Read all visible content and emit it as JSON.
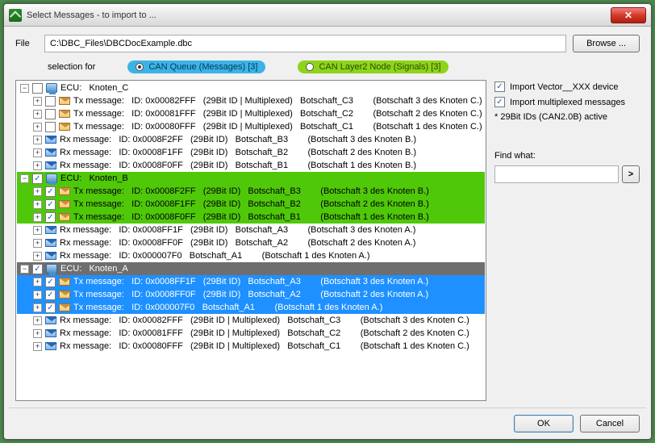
{
  "window": {
    "title": "Select Messages - to import to ..."
  },
  "file": {
    "label": "File",
    "path": "C:\\DBC_Files\\DBCDocExample.dbc",
    "browse": "Browse ..."
  },
  "selection": {
    "label": "selection for",
    "opt1": "CAN Queue (Messages)  [3]",
    "opt2": "CAN Layer2 Node (Signals)  [3]"
  },
  "side": {
    "import_vector": "Import Vector__XXX device",
    "import_mux": "Import multiplexed messages",
    "note": "* 29Bit IDs (CAN2.0B) active",
    "find_label": "Find what:",
    "find_go": ">"
  },
  "buttons": {
    "ok": "OK",
    "cancel": "Cancel"
  },
  "tree": {
    "groups": [
      {
        "ecu_label": "ECU:   Knoten_C",
        "checked": false,
        "style": "plain",
        "tx": [
          {
            "text": "Tx message:   ID: 0x00082FFF   (29Bit ID | Multiplexed)   Botschaft_C3        (Botschaft 3 des Knoten C.)",
            "chk": false
          },
          {
            "text": "Tx message:   ID: 0x00081FFF   (29Bit ID | Multiplexed)   Botschaft_C2        (Botschaft 2 des Knoten C.)",
            "chk": false
          },
          {
            "text": "Tx message:   ID: 0x00080FFF   (29Bit ID | Multiplexed)   Botschaft_C1        (Botschaft 1 des Knoten C.)",
            "chk": false
          }
        ],
        "rx": [
          {
            "text": "Rx message:   ID: 0x0008F2FF   (29Bit ID)   Botschaft_B3        (Botschaft 3 des Knoten B.)"
          },
          {
            "text": "Rx message:   ID: 0x0008F1FF   (29Bit ID)   Botschaft_B2        (Botschaft 2 des Knoten B.)"
          },
          {
            "text": "Rx message:   ID: 0x0008F0FF   (29Bit ID)   Botschaft_B1        (Botschaft 1 des Knoten B.)"
          }
        ]
      },
      {
        "ecu_label": "ECU:   Knoten_B",
        "checked": true,
        "style": "green",
        "tx": [
          {
            "text": "Tx message:   ID: 0x0008F2FF   (29Bit ID)   Botschaft_B3        (Botschaft 3 des Knoten B.)",
            "chk": true
          },
          {
            "text": "Tx message:   ID: 0x0008F1FF   (29Bit ID)   Botschaft_B2        (Botschaft 2 des Knoten B.)",
            "chk": true
          },
          {
            "text": "Tx message:   ID: 0x0008F0FF   (29Bit ID)   Botschaft_B1        (Botschaft 1 des Knoten B.)",
            "chk": true
          }
        ],
        "rx": [
          {
            "text": "Rx message:   ID: 0x0008FF1F   (29Bit ID)   Botschaft_A3        (Botschaft 3 des Knoten A.)"
          },
          {
            "text": "Rx message:   ID: 0x0008FF0F   (29Bit ID)   Botschaft_A2        (Botschaft 2 des Knoten A.)"
          },
          {
            "text": "Rx message:   ID: 0x000007F0   Botschaft_A1        (Botschaft 1 des Knoten A.)"
          }
        ]
      },
      {
        "ecu_label": "ECU:   Knoten_A",
        "checked": true,
        "style": "grey",
        "tx": [
          {
            "text": "Tx message:   ID: 0x0008FF1F   (29Bit ID)   Botschaft_A3        (Botschaft 3 des Knoten A.)",
            "chk": true
          },
          {
            "text": "Tx message:   ID: 0x0008FF0F   (29Bit ID)   Botschaft_A2        (Botschaft 2 des Knoten A.)",
            "chk": true
          },
          {
            "text": "Tx message:   ID: 0x000007F0   Botschaft_A1        (Botschaft 1 des Knoten A.)",
            "chk": true
          }
        ],
        "rx": [
          {
            "text": "Rx message:   ID: 0x00082FFF   (29Bit ID | Multiplexed)   Botschaft_C3        (Botschaft 3 des Knoten C.)"
          },
          {
            "text": "Rx message:   ID: 0x00081FFF   (29Bit ID | Multiplexed)   Botschaft_C2        (Botschaft 2 des Knoten C.)"
          },
          {
            "text": "Rx message:   ID: 0x00080FFF   (29Bit ID | Multiplexed)   Botschaft_C1        (Botschaft 1 des Knoten C.)"
          }
        ]
      }
    ]
  },
  "colors": {
    "hl_green": "#50c80a",
    "hl_blue": "#1e90ff",
    "hl_grey": "#6e6e6e",
    "pill_blue": "#3cb3e6",
    "pill_green": "#8ed41a"
  }
}
